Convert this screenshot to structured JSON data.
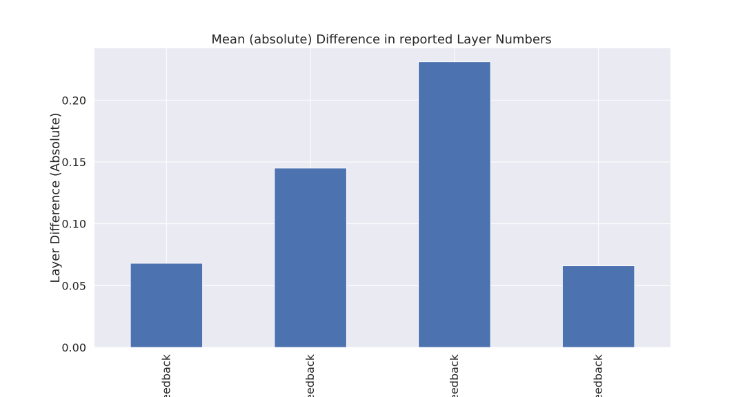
{
  "chart_data": {
    "type": "bar",
    "title": "Mean (absolute) Difference in reported Layer Numbers",
    "xlabel": "",
    "ylabel": "Layer Difference (Absolute)",
    "categories": [
      "eedback",
      "eedback",
      "eedback",
      "eedback"
    ],
    "values": [
      0.068,
      0.145,
      0.231,
      0.066
    ],
    "ylim": [
      0,
      0.242
    ],
    "yticks": [
      0.0,
      0.05,
      0.1,
      0.15,
      0.2
    ],
    "ytick_labels": [
      "0.00",
      "0.05",
      "0.10",
      "0.15",
      "0.20"
    ],
    "grid": true,
    "legend": "none",
    "colors": {
      "bar": "#4c72b0",
      "plot_background": "#eaeaf2",
      "grid": "#ffffff",
      "text": "#262626"
    }
  }
}
